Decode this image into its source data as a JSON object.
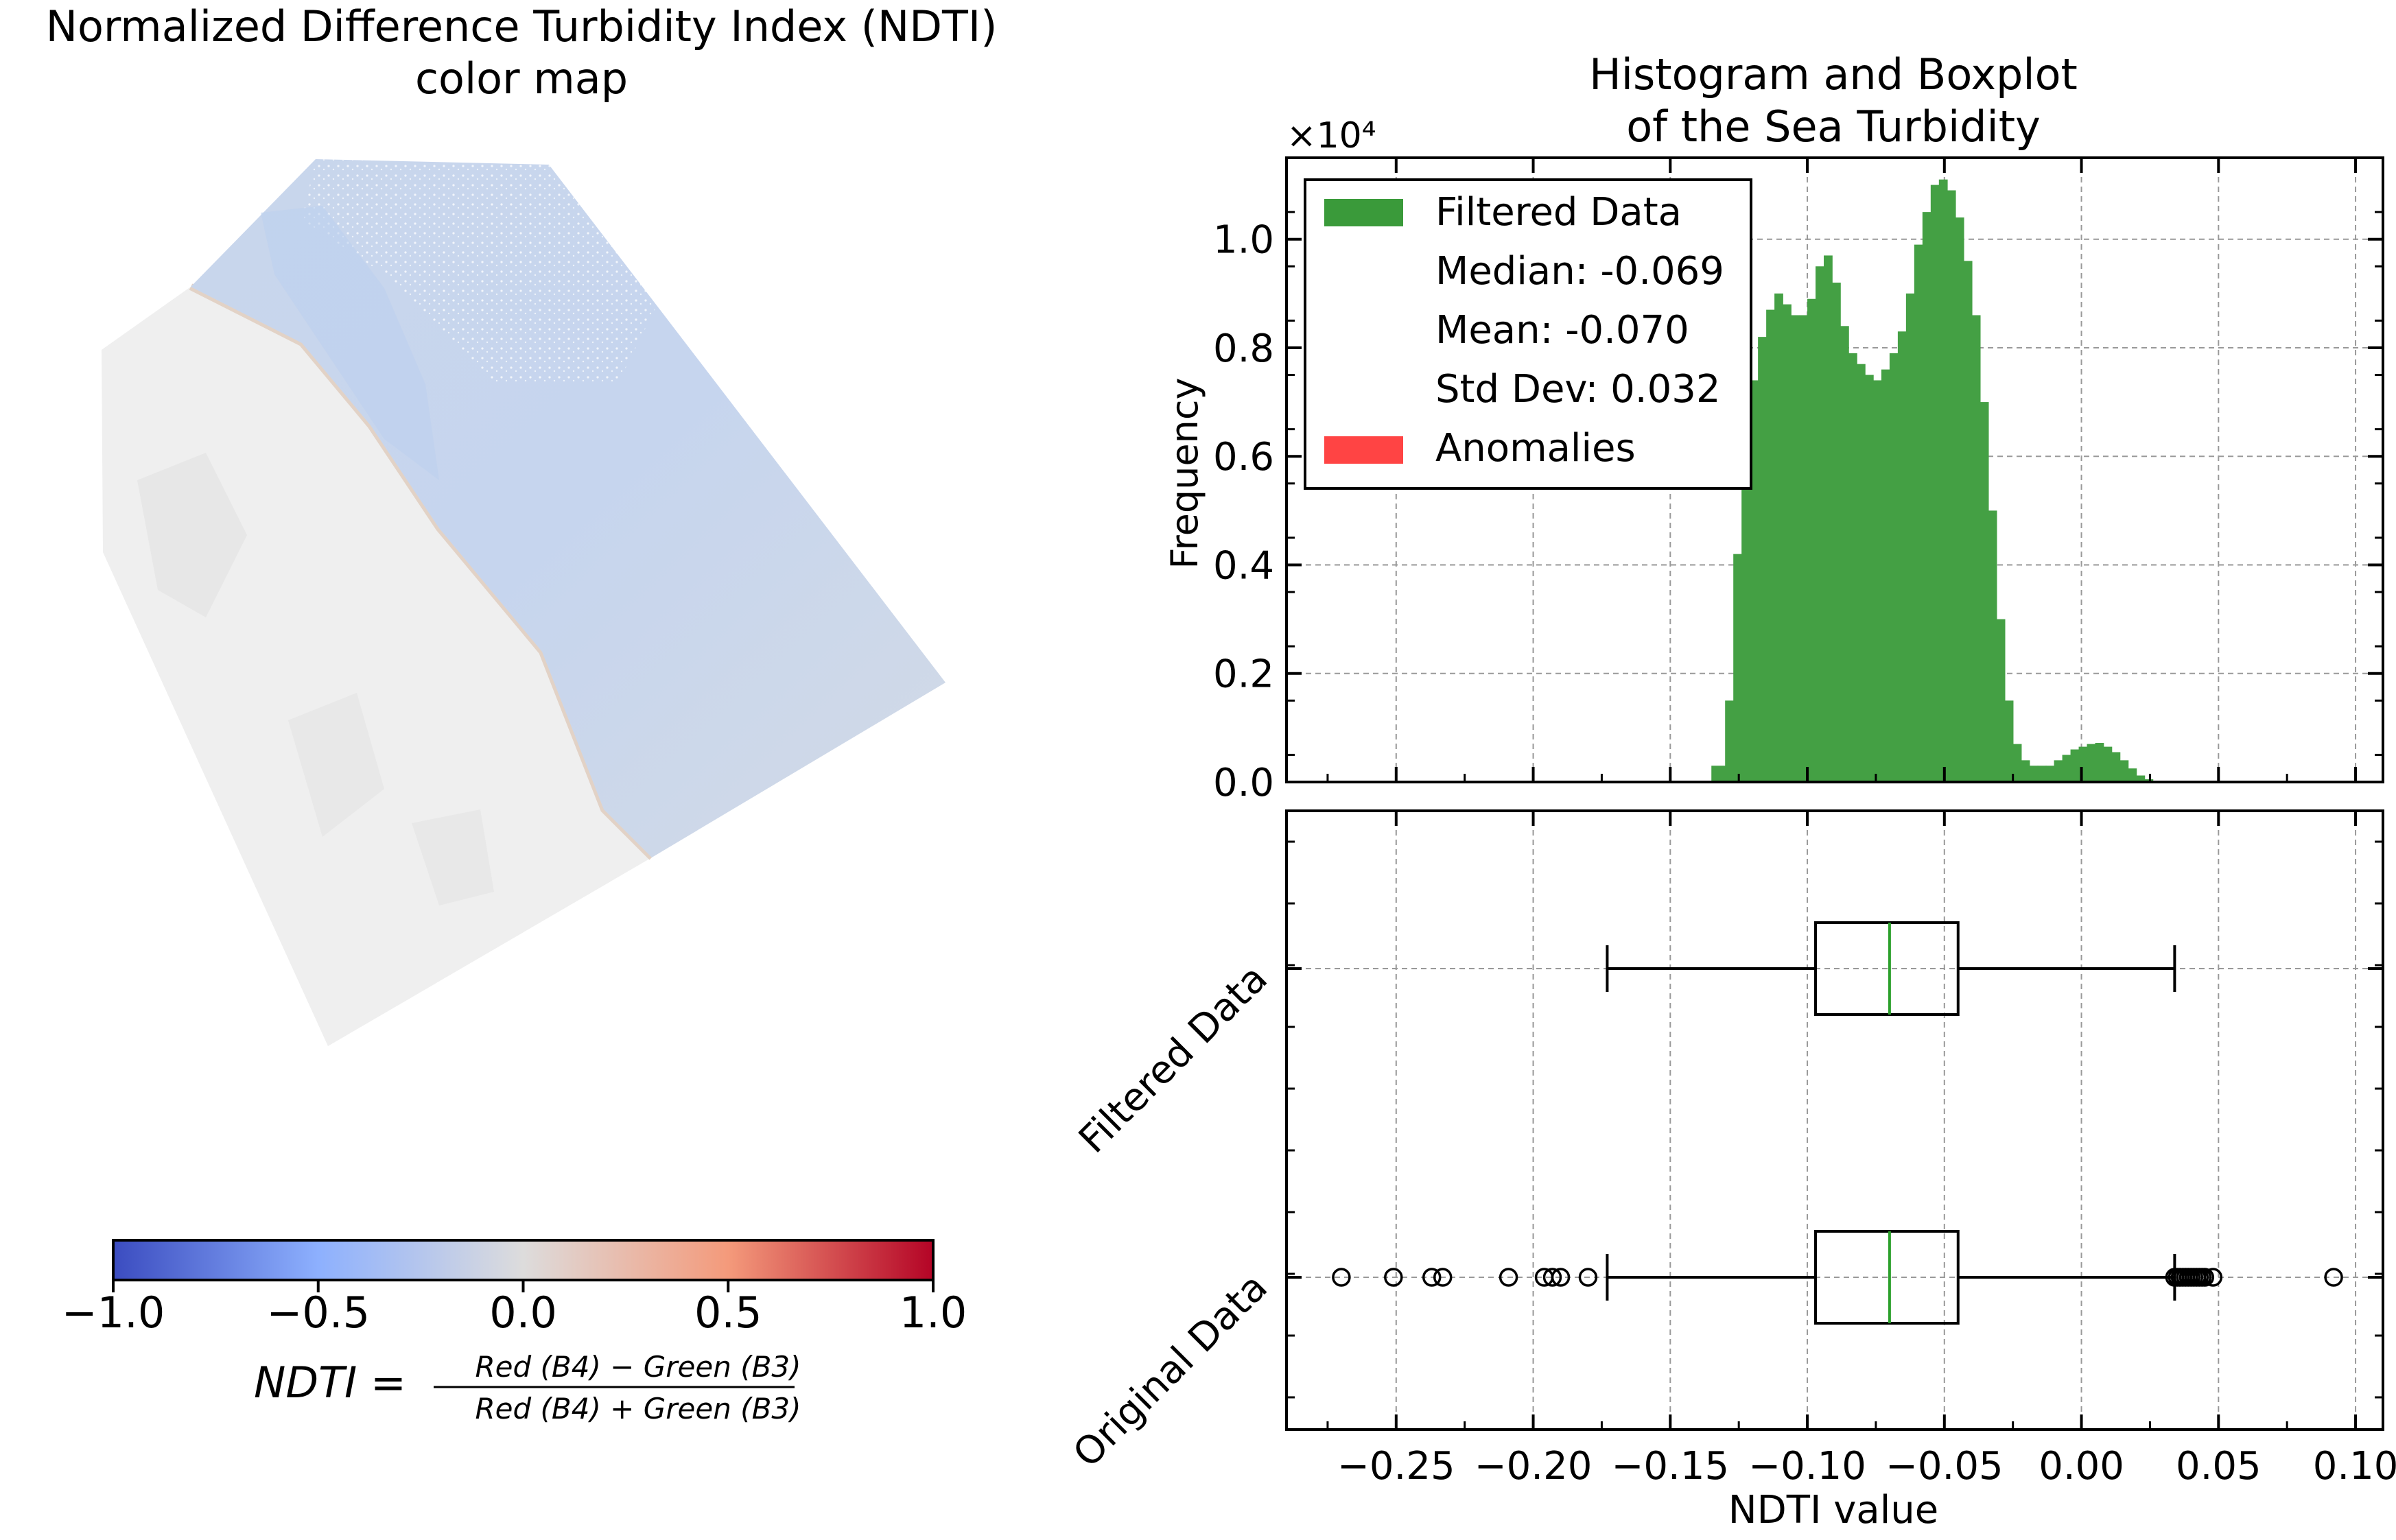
{
  "chart_data": [
    {
      "type": "heatmap",
      "title_lines": [
        "Normalized Difference Turbidity Index (NDTI)",
        "color map"
      ],
      "colormap": "coolwarm",
      "colors": {
        "low": "#3b4cc0",
        "mid": "#dddcdc",
        "high": "#b40426"
      },
      "colorbar": {
        "vmin": -1.0,
        "vmax": 1.0,
        "orientation": "horizontal",
        "ticks": [
          -1.0,
          -0.5,
          0.0,
          0.5,
          1.0
        ],
        "tick_labels": [
          "−1.0",
          "−0.5",
          "0.0",
          "0.5",
          "1.0"
        ]
      },
      "formula": {
        "lhs": "NDTI =",
        "numerator": "Red (B4) − Green (B3)",
        "denominator": "Red (B4) + Green (B3)"
      }
    },
    {
      "type": "bar",
      "title_lines": [
        "Histogram and Boxplot",
        "of the Sea Turbidity"
      ],
      "ylabel": "Frequency",
      "offset_text": "×10⁴",
      "xlim": [
        -0.29,
        0.11
      ],
      "ylim": [
        0,
        1.15
      ],
      "y_multiplier": 10000,
      "yticks": [
        0.0,
        0.2,
        0.4,
        0.6,
        0.8,
        1.0
      ],
      "ytick_labels": [
        "0.0",
        "0.2",
        "0.4",
        "0.6",
        "0.8",
        "1.0"
      ],
      "grid": true,
      "legend_position": "upper left",
      "legend": [
        {
          "label": "Filtered Data",
          "color": "#3a9a3a"
        },
        {
          "label": "Median: -0.069"
        },
        {
          "label": "Mean: -0.070"
        },
        {
          "label": "Std Dev: 0.032"
        },
        {
          "label": "Anomalies",
          "color": "#ff4444"
        }
      ],
      "bar_color": "#44a044",
      "series": [
        {
          "name": "Filtered Data",
          "x": [
            -0.14,
            -0.135,
            -0.13,
            -0.127,
            -0.124,
            -0.121,
            -0.118,
            -0.115,
            -0.112,
            -0.109,
            -0.106,
            -0.103,
            -0.1,
            -0.097,
            -0.094,
            -0.091,
            -0.088,
            -0.085,
            -0.082,
            -0.079,
            -0.076,
            -0.073,
            -0.07,
            -0.067,
            -0.064,
            -0.061,
            -0.058,
            -0.055,
            -0.052,
            -0.049,
            -0.046,
            -0.043,
            -0.04,
            -0.037,
            -0.034,
            -0.031,
            -0.028,
            -0.025,
            -0.022,
            -0.019,
            -0.016,
            -0.013,
            -0.01,
            -0.007,
            -0.004,
            -0.001,
            0.002,
            0.005,
            0.008,
            0.011,
            0.014,
            0.017,
            0.02,
            0.023,
            0.026,
            0.029,
            0.032
          ],
          "values": [
            0.0,
            0.03,
            0.15,
            0.42,
            0.6,
            0.74,
            0.82,
            0.87,
            0.9,
            0.88,
            0.86,
            0.86,
            0.89,
            0.95,
            0.97,
            0.92,
            0.84,
            0.79,
            0.77,
            0.75,
            0.74,
            0.76,
            0.79,
            0.83,
            0.9,
            0.99,
            1.05,
            1.1,
            1.11,
            1.09,
            1.04,
            0.96,
            0.86,
            0.7,
            0.5,
            0.3,
            0.15,
            0.07,
            0.04,
            0.03,
            0.03,
            0.03,
            0.04,
            0.05,
            0.06,
            0.065,
            0.07,
            0.072,
            0.065,
            0.055,
            0.04,
            0.025,
            0.012,
            0.005,
            0.0,
            0.0,
            0.0
          ]
        }
      ]
    },
    {
      "type": "box",
      "xlabel": "NDTI value",
      "xlim": [
        -0.29,
        0.11
      ],
      "xticks": [
        -0.25,
        -0.2,
        -0.15,
        -0.1,
        -0.05,
        0.0,
        0.05,
        0.1
      ],
      "xtick_labels": [
        "−0.25",
        "−0.20",
        "−0.15",
        "−0.10",
        "−0.05",
        "0.00",
        "0.05",
        "0.10"
      ],
      "grid": true,
      "median_color": "#2ca02c",
      "boxes": [
        {
          "name": "Original Data",
          "whisker_low": -0.173,
          "q1": -0.097,
          "median": -0.07,
          "q3": -0.045,
          "whisker_high": 0.034,
          "outliers": [
            -0.27,
            -0.251,
            -0.237,
            -0.233,
            -0.209,
            -0.196,
            -0.193,
            -0.19,
            -0.18,
            0.034,
            0.035,
            0.036,
            0.037,
            0.038,
            0.039,
            0.04,
            0.041,
            0.042,
            0.043,
            0.044,
            0.045,
            0.048,
            0.092
          ]
        },
        {
          "name": "Filtered Data",
          "whisker_low": -0.173,
          "q1": -0.097,
          "median": -0.07,
          "q3": -0.045,
          "whisker_high": 0.034,
          "outliers": []
        }
      ]
    }
  ]
}
